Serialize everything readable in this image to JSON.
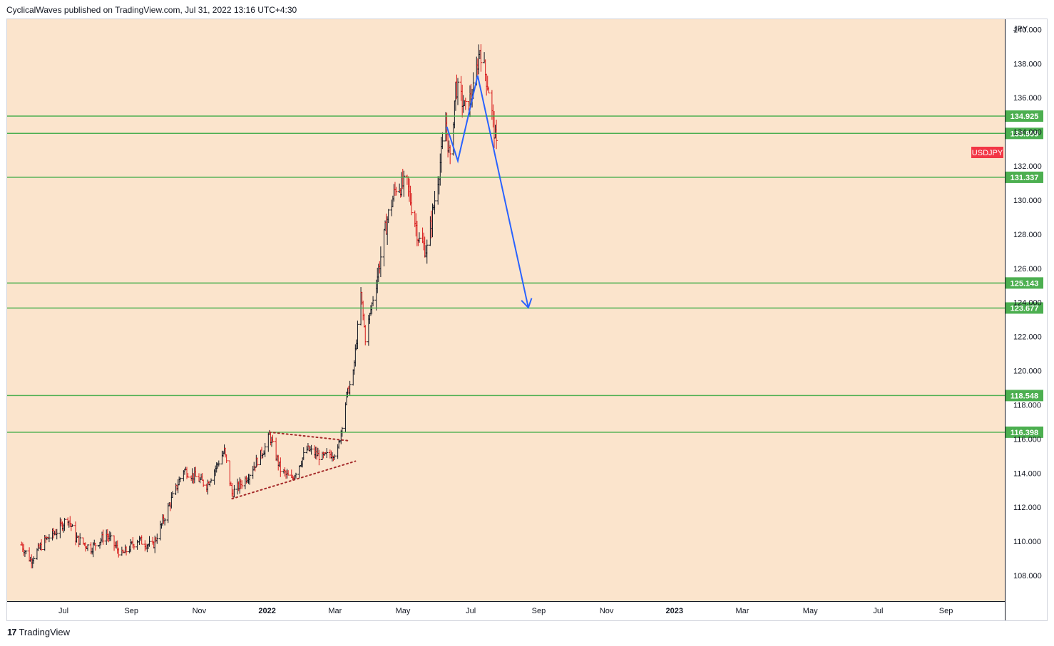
{
  "header": {
    "text": "CyclicalWaves published on TradingView.com, Jul 31, 2022 13:16 UTC+4:30"
  },
  "footer": {
    "brand": "TradingView"
  },
  "colors": {
    "background": "#fbe4cc",
    "level_line": "#4caf50",
    "projection": "#2962ff",
    "triangle": "#a52a2a",
    "up_bar": "#131722",
    "down_bar": "#d81b1b",
    "symbol_badge": "#f23645"
  },
  "chart_data": {
    "type": "ohlc",
    "symbol": "USDJPY",
    "currency": "JPY",
    "y_range": [
      106.5,
      140.6
    ],
    "y_ticks": [
      "108.000",
      "110.000",
      "112.000",
      "114.000",
      "116.000",
      "118.000",
      "120.000",
      "122.000",
      "124.000",
      "126.000",
      "128.000",
      "130.000",
      "132.000",
      "134.000",
      "136.000",
      "138.000",
      "140.000"
    ],
    "x_ticks": [
      "Jul",
      "Sep",
      "Nov",
      "2022",
      "Mar",
      "May",
      "Jul",
      "Sep",
      "Nov",
      "2023",
      "Mar",
      "May",
      "Jul",
      "Sep"
    ],
    "price_path": [
      [
        "2021-05-24",
        109.8
      ],
      [
        "2021-06-01",
        108.9
      ],
      [
        "2021-06-15",
        110.1
      ],
      [
        "2021-06-25",
        110.6
      ],
      [
        "2021-07-05",
        111.4
      ],
      [
        "2021-07-12",
        110.2
      ],
      [
        "2021-07-26",
        109.6
      ],
      [
        "2021-08-09",
        110.4
      ],
      [
        "2021-08-23",
        109.2
      ],
      [
        "2021-09-06",
        110.1
      ],
      [
        "2021-09-20",
        109.7
      ],
      [
        "2021-09-30",
        111.3
      ],
      [
        "2021-10-08",
        112.6
      ],
      [
        "2021-10-18",
        114.2
      ],
      [
        "2021-10-28",
        113.8
      ],
      [
        "2021-11-08",
        113.3
      ],
      [
        "2021-11-24",
        115.3
      ],
      [
        "2021-12-01",
        112.8
      ],
      [
        "2021-12-15",
        113.8
      ],
      [
        "2021-12-31",
        115.5
      ],
      [
        "2022-01-04",
        116.2
      ],
      [
        "2022-01-14",
        114.2
      ],
      [
        "2022-01-24",
        113.6
      ],
      [
        "2022-02-07",
        115.4
      ],
      [
        "2022-02-21",
        114.9
      ],
      [
        "2022-03-07",
        115.3
      ],
      [
        "2022-03-15",
        118.5
      ],
      [
        "2022-03-21",
        119.8
      ],
      [
        "2022-03-28",
        124.5
      ],
      [
        "2022-04-01",
        121.9
      ],
      [
        "2022-04-12",
        125.6
      ],
      [
        "2022-04-21",
        128.9
      ],
      [
        "2022-04-29",
        130.8
      ],
      [
        "2022-05-09",
        130.9
      ],
      [
        "2022-05-20",
        127.6
      ],
      [
        "2022-05-27",
        127.1
      ],
      [
        "2022-06-06",
        131.3
      ],
      [
        "2022-06-13",
        134.5
      ],
      [
        "2022-06-17",
        132.2
      ],
      [
        "2022-06-22",
        136.7
      ],
      [
        "2022-07-01",
        135.3
      ],
      [
        "2022-07-08",
        136.4
      ],
      [
        "2022-07-14",
        138.9
      ],
      [
        "2022-07-22",
        136.5
      ],
      [
        "2022-07-29",
        133.1
      ]
    ],
    "horizontal_levels": [
      134.925,
      133.909,
      131.337,
      125.143,
      123.677,
      118.548,
      116.398
    ],
    "projection": [
      [
        "2022-06-14",
        134.3
      ],
      [
        "2022-06-24",
        132.3
      ],
      [
        "2022-07-12",
        137.3
      ],
      [
        "2022-08-27",
        123.7
      ]
    ],
    "triangle": {
      "upper": [
        [
          "2022-01-04",
          116.4
        ],
        [
          "2022-03-17",
          115.9
        ]
      ],
      "lower": [
        [
          "2021-12-01",
          112.5
        ],
        [
          "2022-03-23",
          114.7
        ]
      ]
    },
    "last_price_label": "USDJPY"
  }
}
